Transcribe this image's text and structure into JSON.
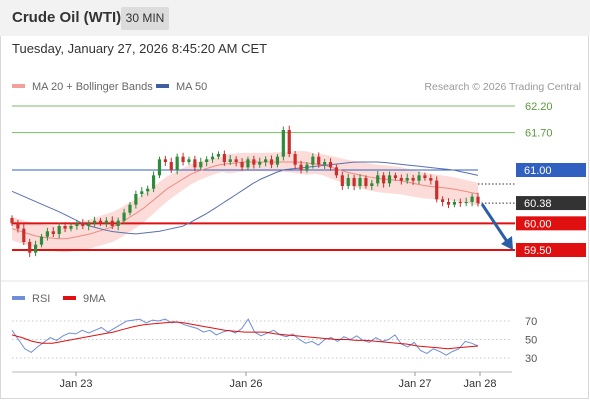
{
  "header": {
    "title": "Crude Oil (WTI)",
    "timeframe": "30 MIN"
  },
  "date_line": "Tuesday, January 27, 2026 8:45:20 AM CET",
  "legend": {
    "items": [
      {
        "label": "MA 20 + Bollinger Bands",
        "color": "#f4a09a"
      },
      {
        "label": "MA 50",
        "color": "#3f5f9f"
      }
    ],
    "credit": "Research © 2026 Trading Central"
  },
  "colors": {
    "up_candle": "#2e8b3a",
    "down_candle": "#c8302c",
    "bollinger_fill": "#fbdcd9",
    "ma20": "#f08a82",
    "ma50": "#5a6fb0",
    "resistance": "#7fb86a",
    "pivot": "#3060c0",
    "support": "#e01010",
    "last_price": "#333333",
    "rsi": "#6f8fd8",
    "rsi_ma": "#e01010",
    "arrow": "#2a5fa8"
  },
  "levels": [
    {
      "label": "62.20",
      "value": 62.2,
      "kind": "resistance"
    },
    {
      "label": "61.70",
      "value": 61.7,
      "kind": "resistance"
    },
    {
      "label": "61.00",
      "value": 61.0,
      "kind": "pivot"
    },
    {
      "label": "60.38",
      "value": 60.38,
      "kind": "last"
    },
    {
      "label": "60.00",
      "value": 60.0,
      "kind": "support"
    },
    {
      "label": "59.50",
      "value": 59.5,
      "kind": "support"
    }
  ],
  "rsi_legend": {
    "items": [
      {
        "label": "RSI",
        "color": "#6f8fd8"
      },
      {
        "label": "9MA",
        "color": "#e01010"
      }
    ]
  },
  "rsi_ticks": [
    "70",
    "50",
    "30"
  ],
  "x_labels": [
    "Jan 23",
    "Jan 26",
    "Jan 27",
    "Jan 28"
  ],
  "chart_data": [
    {
      "type": "candlestick",
      "title": "Crude Oil (WTI)",
      "timeframe": "30 MIN",
      "ylim": [
        59.2,
        62.4
      ],
      "series": [
        {
          "name": "Close",
          "values": [
            60.0,
            59.9,
            59.65,
            59.45,
            59.6,
            59.75,
            59.85,
            59.8,
            59.95,
            59.9,
            59.95,
            60.0,
            59.95,
            60.0,
            60.05,
            60.0,
            60.05,
            59.95,
            60.05,
            60.2,
            60.35,
            60.55,
            60.6,
            60.65,
            60.9,
            61.2,
            61.15,
            61.0,
            61.25,
            61.15,
            61.2,
            61.05,
            61.15,
            61.2,
            61.25,
            61.3,
            61.15,
            61.2,
            61.15,
            61.05,
            61.2,
            61.1,
            61.15,
            61.2,
            61.1,
            61.25,
            61.75,
            61.3,
            61.1,
            61.0,
            61.1,
            61.25,
            61.1,
            61.15,
            61.05,
            60.9,
            60.7,
            60.85,
            60.7,
            60.85,
            60.7,
            60.75,
            60.9,
            60.75,
            60.9,
            60.85,
            60.8,
            60.85,
            60.8,
            60.9,
            60.85,
            60.8,
            60.45,
            60.4,
            60.35,
            60.4,
            60.38,
            60.4,
            60.5,
            60.38
          ]
        }
      ],
      "ma20": {
        "name": "MA 20",
        "values": [
          59.9,
          59.75,
          59.7,
          59.8,
          59.95,
          60.25,
          60.65,
          60.95,
          61.1,
          61.15,
          61.15,
          61.15,
          61.1,
          60.95,
          60.85,
          60.8,
          60.7,
          60.65,
          60.55
        ]
      },
      "ma50": {
        "name": "MA 50",
        "values": [
          60.6,
          60.4,
          60.2,
          59.97,
          59.85,
          59.8,
          59.85,
          59.95,
          60.2,
          60.5,
          60.8,
          61.0,
          61.05,
          61.1,
          61.15,
          61.15,
          61.1,
          61.05,
          61.0,
          60.9
        ]
      },
      "x_ticks": [
        "Jan 23",
        "Jan 26",
        "Jan 27",
        "Jan 28"
      ],
      "horizontal_levels": [
        62.2,
        61.7,
        61.0,
        60.0,
        59.5
      ],
      "last_price": 60.38,
      "forecast": {
        "from": 60.38,
        "to": 59.5
      },
      "legend": [
        "MA 20 + Bollinger Bands",
        "MA 50"
      ]
    },
    {
      "type": "line",
      "title": "",
      "ylim": [
        20,
        80
      ],
      "y_ticks": [
        70,
        50,
        30
      ],
      "series": [
        {
          "name": "RSI",
          "values": [
            60,
            50,
            40,
            36,
            42,
            47,
            52,
            49,
            54,
            57,
            56,
            60,
            57,
            60,
            63,
            58,
            62,
            66,
            70,
            71,
            72,
            68,
            71,
            70,
            72,
            68,
            69,
            66,
            64,
            62,
            58,
            60,
            55,
            58,
            60,
            57,
            62,
            72,
            58,
            54,
            57,
            60,
            55,
            53,
            56,
            50,
            46,
            48,
            44,
            50,
            52,
            48,
            53,
            50,
            54,
            49,
            47,
            52,
            48,
            50,
            55,
            45,
            42,
            47,
            38,
            35,
            40,
            37,
            33,
            37,
            40,
            48,
            46,
            43
          ]
        },
        {
          "name": "9MA",
          "values": [
            55,
            52,
            48,
            46,
            46,
            48,
            50,
            52,
            54,
            56,
            58,
            61,
            64,
            66,
            67,
            68,
            69,
            68,
            66,
            64,
            62,
            60,
            59,
            58,
            58,
            58,
            56,
            55,
            54,
            53,
            52,
            51,
            50,
            50,
            49,
            49,
            48,
            47,
            46,
            45,
            43,
            42,
            41,
            40,
            41,
            42,
            43
          ]
        }
      ],
      "legend": [
        "RSI",
        "9MA"
      ]
    }
  ]
}
